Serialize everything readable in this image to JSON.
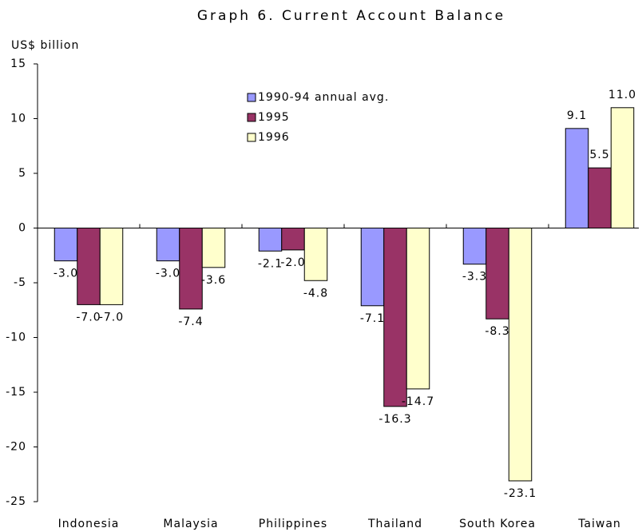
{
  "chart_data": {
    "type": "bar",
    "title": "Graph 6. Current Account Balance",
    "y_label": "US$ billion",
    "categories": [
      "Indonesia",
      "Malaysia",
      "Philippines",
      "Thailand",
      "South Korea",
      "Taiwan"
    ],
    "series": [
      {
        "name": "1990-94 annual avg.",
        "color": "#9999ff",
        "values": [
          -3.0,
          -3.0,
          -2.1,
          -7.1,
          -3.3,
          9.1
        ],
        "value_labels": [
          "-3.0",
          "-3.0",
          "-2.1",
          "-7.1",
          "-3.3",
          "9.1"
        ]
      },
      {
        "name": "1995",
        "color": "#993366",
        "values": [
          -7.0,
          -7.4,
          -2.0,
          -16.3,
          -8.3,
          5.5
        ],
        "value_labels": [
          "-7.0",
          "-7.4",
          "-2.0",
          "-16.3",
          "-8.3",
          "5.5"
        ]
      },
      {
        "name": "1996",
        "color": "#ffffcc",
        "values": [
          -7.0,
          -3.6,
          -4.8,
          -14.7,
          -23.1,
          11.0
        ],
        "value_labels": [
          "-7.0",
          "-3.6",
          "-4.8",
          "-14.7",
          "-23.1",
          "11.0"
        ]
      }
    ],
    "ylim": [
      -25,
      15
    ],
    "yticks": [
      15,
      10,
      5,
      0,
      -5,
      -10,
      -15,
      -20,
      -25
    ],
    "grid": false
  }
}
